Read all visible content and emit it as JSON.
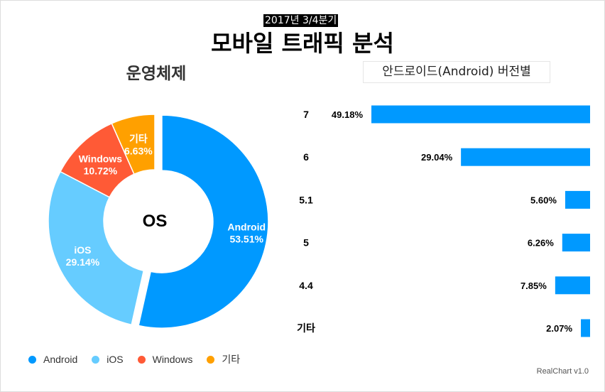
{
  "header": {
    "badge": "2017년 3/4분기",
    "title": "모바일 트래픽 분석"
  },
  "credit": "RealChart v1.0",
  "chart_data": [
    {
      "type": "pie",
      "title": "운영체제",
      "center_label": "OS",
      "slices": [
        {
          "label": "Android",
          "value": 53.51,
          "value_label": "53.51%",
          "color": "#0099ff"
        },
        {
          "label": "iOS",
          "value": 29.14,
          "value_label": "29.14%",
          "color": "#66ccff"
        },
        {
          "label": "Windows",
          "value": 10.72,
          "value_label": "10.72%",
          "color": "#ff5a36"
        },
        {
          "label": "기타",
          "value": 6.63,
          "value_label": "6.63%",
          "color": "#ffa000"
        }
      ],
      "legend_position": "bottom"
    },
    {
      "type": "bar",
      "title": "안드로이드(Android) 버전별",
      "orientation": "horizontal-reversed",
      "categories": [
        "7",
        "6",
        "5.1",
        "5",
        "4.4",
        "기타"
      ],
      "values": [
        49.18,
        29.04,
        5.6,
        6.26,
        7.85,
        2.07
      ],
      "value_labels": [
        "49.18%",
        "29.04%",
        "5.60%",
        "6.26%",
        "7.85%",
        "2.07%"
      ],
      "color": "#0099ff"
    }
  ]
}
